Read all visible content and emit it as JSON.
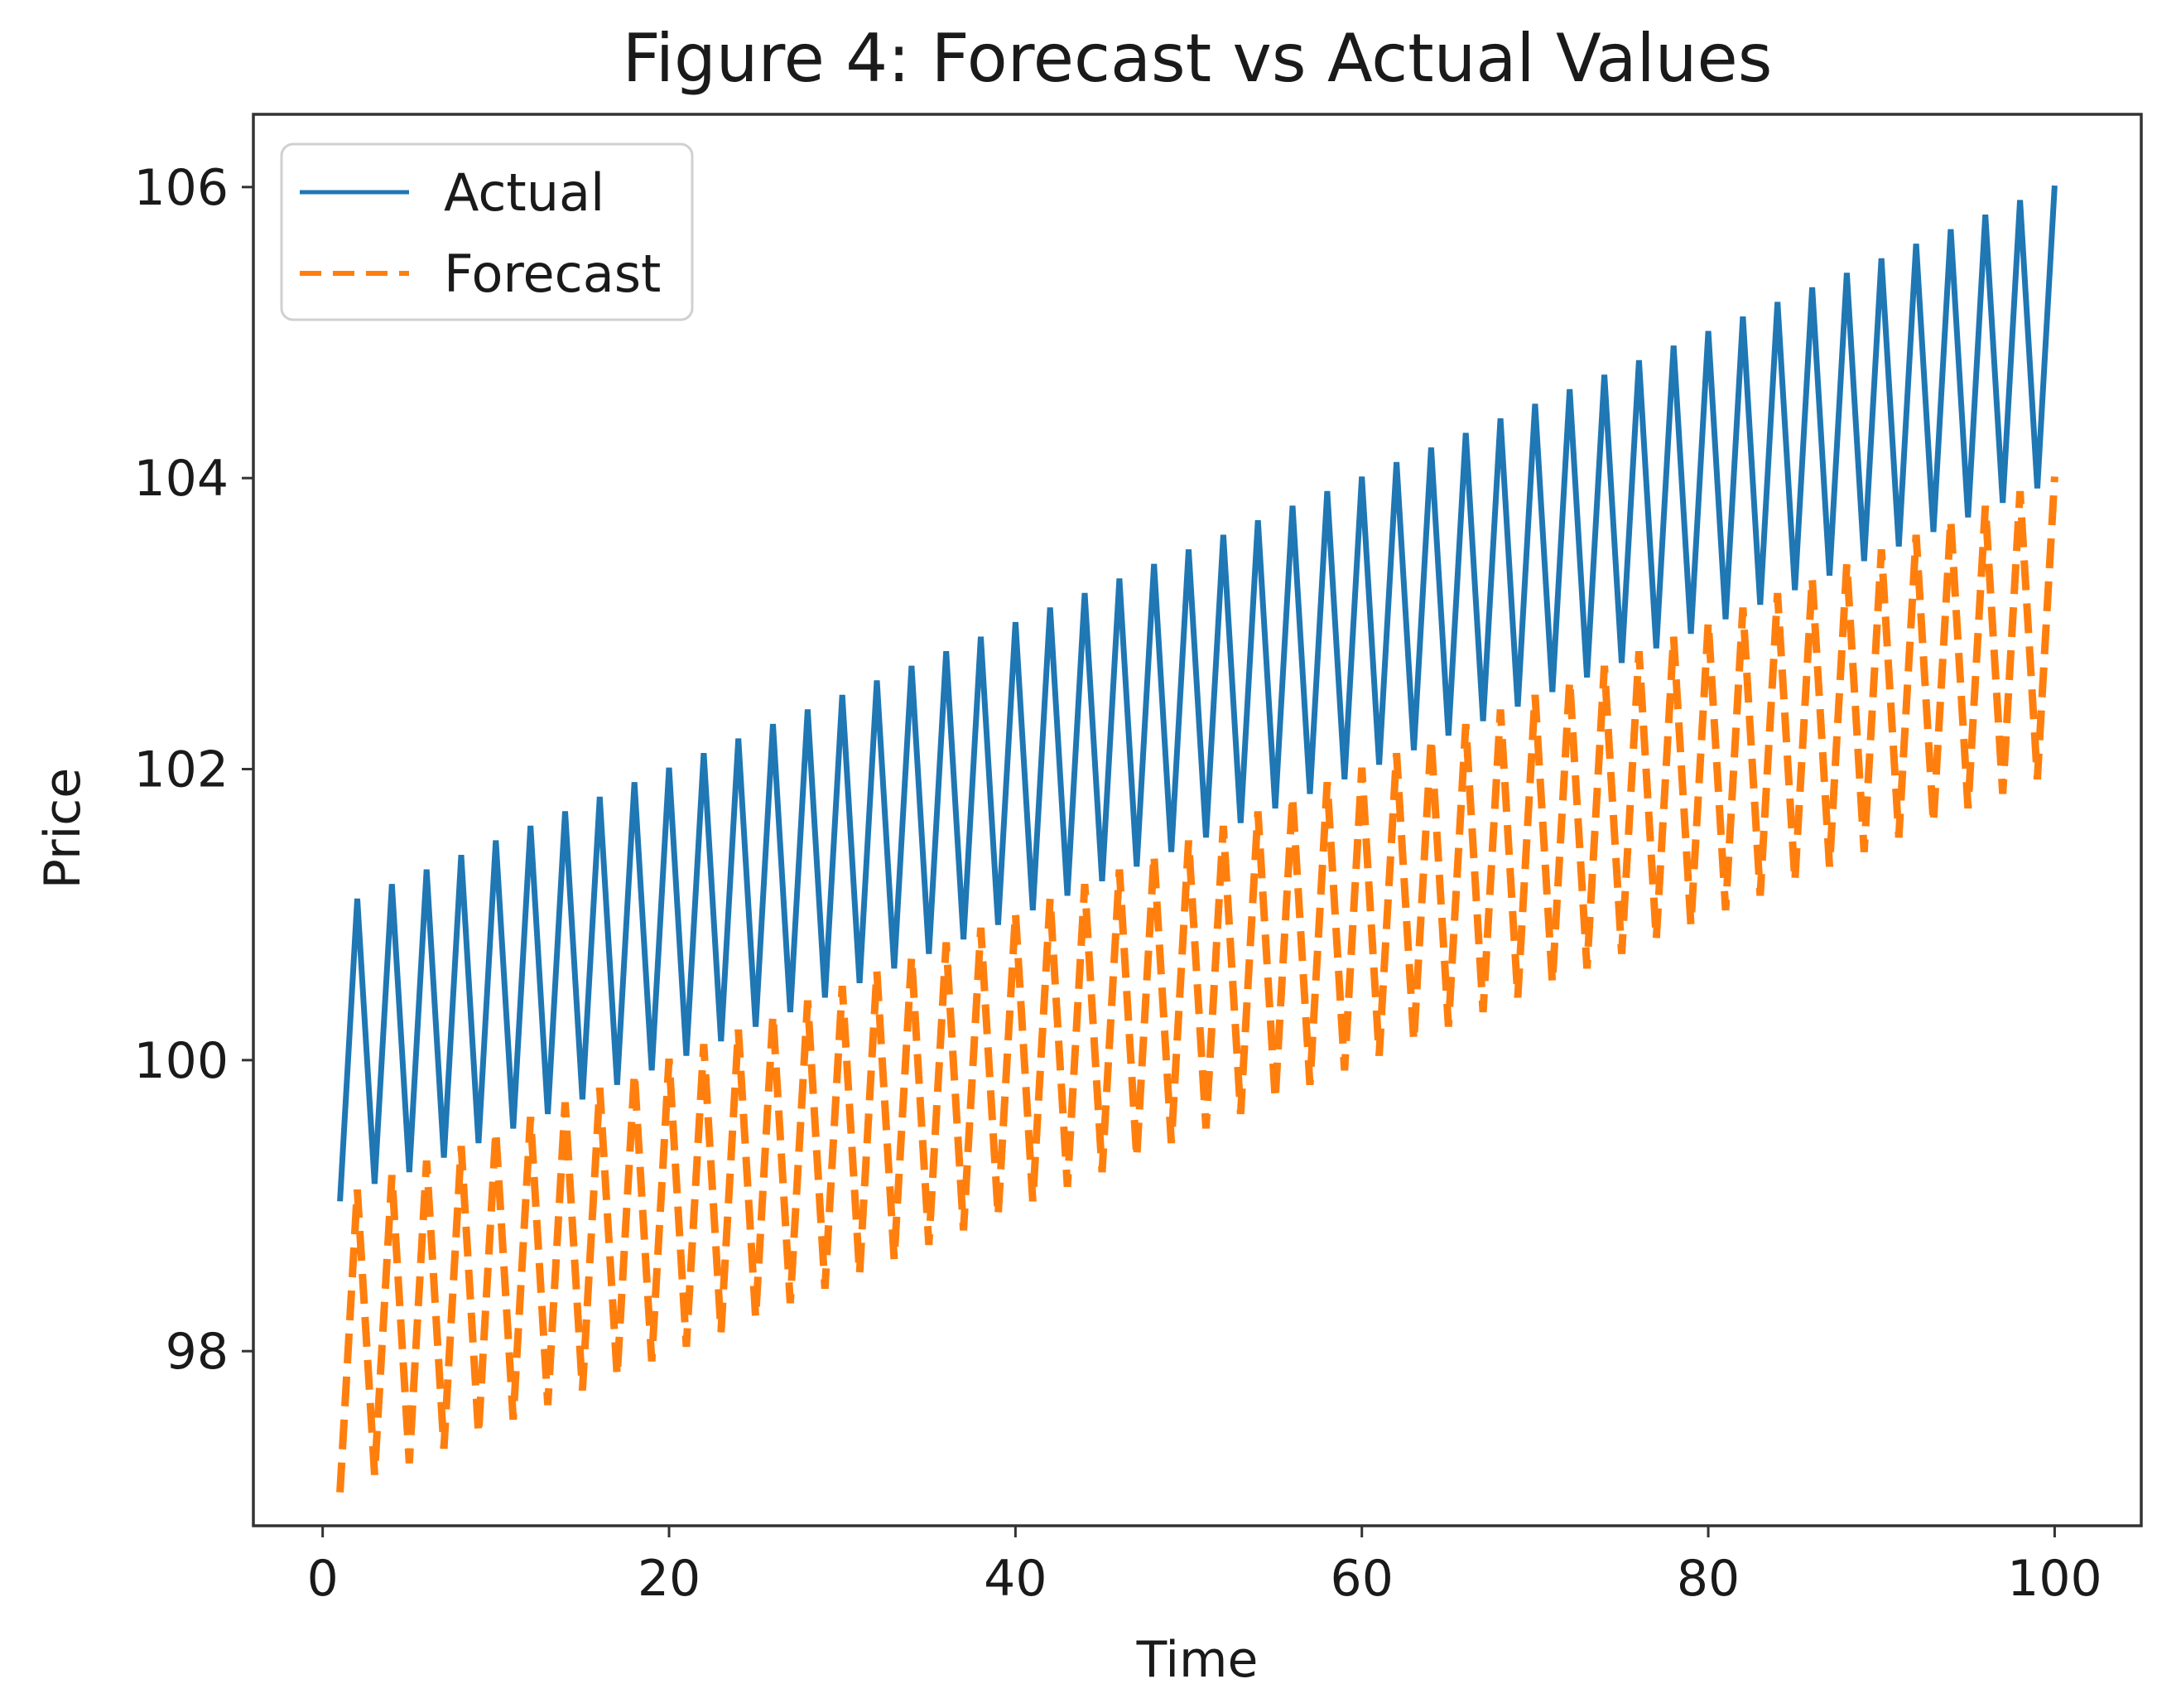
{
  "chart_data": {
    "type": "line",
    "title": "Figure 4: Forecast vs Actual Values",
    "xlabel": "Time",
    "ylabel": "Price",
    "xlim": [
      -4,
      105
    ],
    "ylim": [
      96.8,
      106.5
    ],
    "xticks": [
      0,
      20,
      40,
      60,
      80,
      100
    ],
    "yticks": [
      98,
      100,
      102,
      104,
      106
    ],
    "grid": false,
    "legend_position": "top-left",
    "x": [
      1,
      2,
      3,
      4,
      5,
      6,
      7,
      8,
      9,
      10,
      11,
      12,
      13,
      14,
      15,
      16,
      17,
      18,
      19,
      20,
      21,
      22,
      23,
      24,
      25,
      26,
      27,
      28,
      29,
      30,
      31,
      32,
      33,
      34,
      35,
      36,
      37,
      38,
      39,
      40,
      41,
      42,
      43,
      44,
      45,
      46,
      47,
      48,
      49,
      50,
      51,
      52,
      53,
      54,
      55,
      56,
      57,
      58,
      59,
      60,
      61,
      62,
      63,
      64,
      65,
      66,
      67,
      68,
      69,
      70,
      71,
      72,
      73,
      74,
      75,
      76,
      77,
      78,
      79,
      80,
      81,
      82,
      83,
      84,
      85,
      86,
      87,
      88,
      89,
      90,
      91,
      92,
      93,
      94,
      95,
      96,
      97,
      98,
      99,
      100
    ],
    "series": [
      {
        "name": "Actual",
        "color": "#1f77b4",
        "style": "solid",
        "values": [
          99.03,
          101.11,
          99.15,
          101.21,
          99.23,
          101.31,
          99.33,
          101.41,
          99.43,
          101.51,
          99.53,
          101.61,
          99.63,
          101.71,
          99.73,
          101.81,
          99.83,
          101.91,
          99.93,
          102.01,
          100.03,
          102.11,
          100.13,
          102.21,
          100.23,
          102.31,
          100.33,
          102.41,
          100.43,
          102.51,
          100.53,
          102.61,
          100.63,
          102.71,
          100.73,
          102.81,
          100.83,
          102.91,
          100.93,
          103.01,
          101.03,
          103.11,
          101.13,
          103.21,
          101.23,
          103.31,
          101.33,
          103.41,
          101.43,
          103.51,
          101.53,
          103.61,
          101.63,
          103.71,
          101.73,
          103.81,
          101.83,
          103.91,
          101.93,
          104.01,
          102.03,
          104.11,
          102.13,
          104.21,
          102.23,
          104.31,
          102.33,
          104.41,
          102.43,
          104.51,
          102.53,
          104.61,
          102.63,
          104.71,
          102.73,
          104.81,
          102.83,
          104.91,
          102.93,
          105.01,
          103.03,
          105.11,
          103.13,
          105.21,
          103.23,
          105.31,
          103.33,
          105.41,
          103.43,
          105.51,
          103.53,
          105.61,
          103.63,
          105.71,
          103.73,
          105.81,
          103.83,
          105.91,
          103.93,
          106.01
        ]
      },
      {
        "name": "Forecast",
        "color": "#ff7f0e",
        "style": "dashed",
        "values": [
          97.03,
          99.11,
          97.15,
          99.21,
          97.23,
          99.31,
          97.33,
          99.41,
          97.43,
          99.51,
          97.53,
          99.61,
          97.63,
          99.71,
          97.73,
          99.81,
          97.83,
          99.91,
          97.93,
          100.01,
          98.03,
          100.11,
          98.13,
          100.21,
          98.23,
          100.31,
          98.33,
          100.41,
          98.43,
          100.51,
          98.53,
          100.61,
          98.63,
          100.71,
          98.73,
          100.81,
          98.83,
          100.91,
          98.93,
          101.01,
          99.03,
          101.11,
          99.13,
          101.21,
          99.23,
          101.31,
          99.33,
          101.41,
          99.43,
          101.51,
          99.53,
          101.61,
          99.63,
          101.71,
          99.73,
          101.81,
          99.83,
          101.91,
          99.93,
          102.01,
          100.03,
          102.11,
          100.13,
          102.21,
          100.23,
          102.31,
          100.33,
          102.41,
          100.43,
          102.51,
          100.53,
          102.61,
          100.63,
          102.71,
          100.73,
          102.81,
          100.83,
          102.91,
          100.93,
          103.01,
          101.03,
          103.11,
          101.13,
          103.21,
          101.23,
          103.31,
          101.33,
          103.41,
          101.43,
          103.51,
          101.53,
          103.61,
          101.63,
          103.71,
          101.73,
          103.81,
          101.83,
          103.91,
          101.93,
          104.01
        ]
      }
    ]
  }
}
